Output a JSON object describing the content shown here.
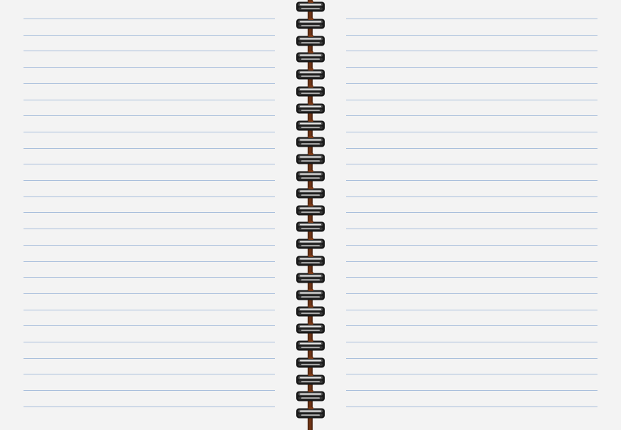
{
  "notebook": {
    "background_color": "#f3f3f3",
    "rule_color": "#a9bfdc",
    "spine_color": "#7a3a18",
    "ring_color": "#1a1a1a",
    "ring_highlight_color": "#e6e6e6",
    "ring_icon": "spiral-binding-ring",
    "left_page": {
      "rule_count": 25
    },
    "right_page": {
      "rule_count": 25
    },
    "spiral": {
      "ring_count": 25
    }
  }
}
